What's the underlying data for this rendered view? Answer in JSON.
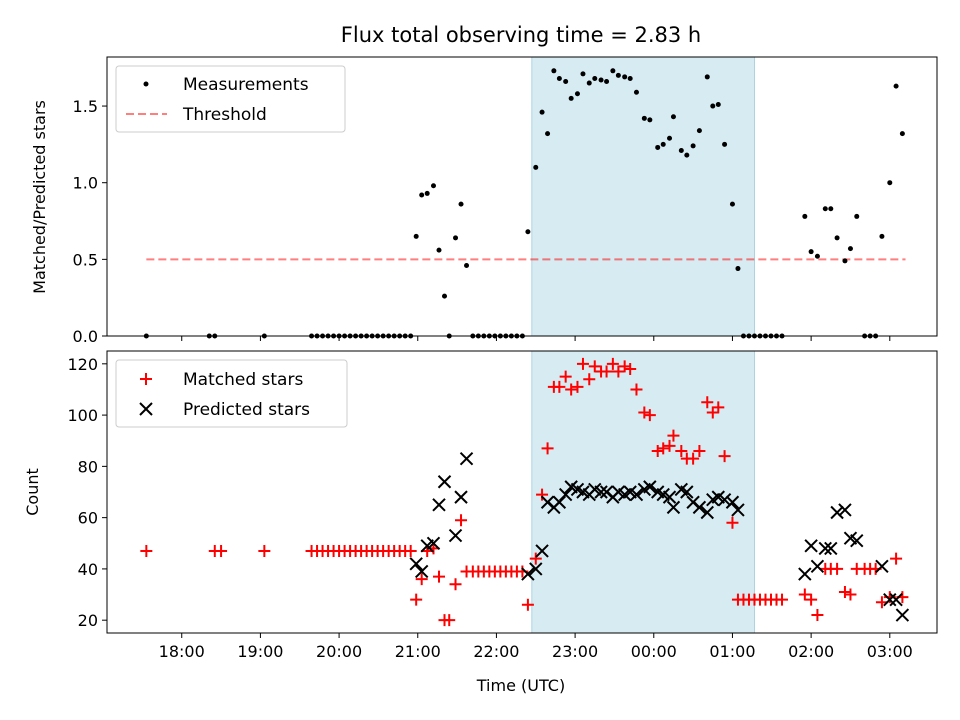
{
  "chart_data": {
    "type": "scatter",
    "title": "Flux total observing time = 2.83 h",
    "xlabel": "Time (UTC)",
    "x_unit": "hours since 00:00 UTC",
    "xlim": [
      -6.95,
      3.6
    ],
    "xticks": [
      {
        "v": -6,
        "label": "18:00"
      },
      {
        "v": -5,
        "label": "19:00"
      },
      {
        "v": -4,
        "label": "20:00"
      },
      {
        "v": -3,
        "label": "21:00"
      },
      {
        "v": -2,
        "label": "22:00"
      },
      {
        "v": -1,
        "label": "23:00"
      },
      {
        "v": 0,
        "label": "00:00"
      },
      {
        "v": 1,
        "label": "01:00"
      },
      {
        "v": 2,
        "label": "02:00"
      },
      {
        "v": 3,
        "label": "03:00"
      }
    ],
    "shaded_interval": [
      -1.55,
      1.28
    ],
    "top": {
      "ylabel": "Matched/Predicted stars",
      "ylim": [
        0,
        1.82
      ],
      "yticks": [
        {
          "v": 0,
          "label": "0.0"
        },
        {
          "v": 0.5,
          "label": "0.5"
        },
        {
          "v": 1.0,
          "label": "1.0"
        },
        {
          "v": 1.5,
          "label": "1.5"
        }
      ],
      "legend": [
        {
          "name": "Measurements",
          "marker": "dot"
        },
        {
          "name": "Threshold",
          "marker": "dashed-line"
        }
      ],
      "threshold": {
        "value": 0.5,
        "x_range": [
          -6.45,
          3.2
        ]
      },
      "measurements": [
        [
          -6.45,
          0
        ],
        [
          -5.65,
          0
        ],
        [
          -5.58,
          0
        ],
        [
          -4.95,
          0
        ],
        [
          -4.35,
          0
        ],
        [
          -4.28,
          0
        ],
        [
          -4.21,
          0
        ],
        [
          -4.14,
          0
        ],
        [
          -4.07,
          0
        ],
        [
          -4.0,
          0
        ],
        [
          -3.93,
          0
        ],
        [
          -3.86,
          0
        ],
        [
          -3.79,
          0
        ],
        [
          -3.72,
          0
        ],
        [
          -3.65,
          0
        ],
        [
          -3.58,
          0
        ],
        [
          -3.51,
          0
        ],
        [
          -3.44,
          0
        ],
        [
          -3.37,
          0
        ],
        [
          -3.3,
          0
        ],
        [
          -3.23,
          0
        ],
        [
          -3.16,
          0
        ],
        [
          -3.09,
          0
        ],
        [
          -3.02,
          0.65
        ],
        [
          -2.95,
          0.92
        ],
        [
          -2.88,
          0.93
        ],
        [
          -2.8,
          0.98
        ],
        [
          -2.73,
          0.56
        ],
        [
          -2.66,
          0.26
        ],
        [
          -2.6,
          0
        ],
        [
          -2.52,
          0.64
        ],
        [
          -2.45,
          0.86
        ],
        [
          -2.38,
          0.46
        ],
        [
          -2.3,
          0
        ],
        [
          -2.23,
          0
        ],
        [
          -2.16,
          0
        ],
        [
          -2.09,
          0
        ],
        [
          -2.02,
          0
        ],
        [
          -1.95,
          0
        ],
        [
          -1.88,
          0
        ],
        [
          -1.81,
          0
        ],
        [
          -1.74,
          0
        ],
        [
          -1.67,
          0
        ],
        [
          -1.6,
          0.68
        ],
        [
          -1.5,
          1.1
        ],
        [
          -1.42,
          1.46
        ],
        [
          -1.35,
          1.32
        ],
        [
          -1.27,
          1.73
        ],
        [
          -1.2,
          1.68
        ],
        [
          -1.12,
          1.66
        ],
        [
          -1.05,
          1.55
        ],
        [
          -0.97,
          1.58
        ],
        [
          -0.9,
          1.71
        ],
        [
          -0.82,
          1.65
        ],
        [
          -0.75,
          1.68
        ],
        [
          -0.67,
          1.67
        ],
        [
          -0.6,
          1.66
        ],
        [
          -0.52,
          1.73
        ],
        [
          -0.45,
          1.7
        ],
        [
          -0.37,
          1.69
        ],
        [
          -0.3,
          1.68
        ],
        [
          -0.22,
          1.59
        ],
        [
          -0.12,
          1.42
        ],
        [
          -0.05,
          1.41
        ],
        [
          0.05,
          1.23
        ],
        [
          0.12,
          1.25
        ],
        [
          0.2,
          1.29
        ],
        [
          0.25,
          1.43
        ],
        [
          0.35,
          1.21
        ],
        [
          0.42,
          1.18
        ],
        [
          0.5,
          1.24
        ],
        [
          0.58,
          1.34
        ],
        [
          0.68,
          1.69
        ],
        [
          0.75,
          1.5
        ],
        [
          0.82,
          1.51
        ],
        [
          0.9,
          1.25
        ],
        [
          1.0,
          0.86
        ],
        [
          1.07,
          0.44
        ],
        [
          1.14,
          0
        ],
        [
          1.21,
          0
        ],
        [
          1.28,
          0
        ],
        [
          1.35,
          0
        ],
        [
          1.42,
          0
        ],
        [
          1.49,
          0
        ],
        [
          1.56,
          0
        ],
        [
          1.63,
          0
        ],
        [
          1.92,
          0.78
        ],
        [
          2.0,
          0.55
        ],
        [
          2.08,
          0.52
        ],
        [
          2.18,
          0.83
        ],
        [
          2.25,
          0.83
        ],
        [
          2.33,
          0.64
        ],
        [
          2.43,
          0.49
        ],
        [
          2.5,
          0.57
        ],
        [
          2.58,
          0.78
        ],
        [
          2.68,
          0
        ],
        [
          2.75,
          0
        ],
        [
          2.82,
          0
        ],
        [
          2.9,
          0.65
        ],
        [
          3.0,
          1.0
        ],
        [
          3.08,
          1.63
        ],
        [
          3.16,
          1.32
        ]
      ]
    },
    "bottom": {
      "ylabel": "Count",
      "ylim": [
        15,
        125
      ],
      "yticks": [
        {
          "v": 20,
          "label": "20"
        },
        {
          "v": 40,
          "label": "40"
        },
        {
          "v": 60,
          "label": "60"
        },
        {
          "v": 80,
          "label": "80"
        },
        {
          "v": 100,
          "label": "100"
        },
        {
          "v": 120,
          "label": "120"
        }
      ],
      "legend": [
        {
          "name": "Matched stars",
          "marker": "plus",
          "color": "#ff0000"
        },
        {
          "name": "Predicted stars",
          "marker": "x",
          "color": "#000000"
        }
      ],
      "matched": [
        [
          -6.45,
          47
        ],
        [
          -5.58,
          47
        ],
        [
          -5.5,
          47
        ],
        [
          -4.95,
          47
        ],
        [
          -4.35,
          47
        ],
        [
          -4.28,
          47
        ],
        [
          -4.21,
          47
        ],
        [
          -4.14,
          47
        ],
        [
          -4.07,
          47
        ],
        [
          -4.0,
          47
        ],
        [
          -3.93,
          47
        ],
        [
          -3.86,
          47
        ],
        [
          -3.79,
          47
        ],
        [
          -3.72,
          47
        ],
        [
          -3.65,
          47
        ],
        [
          -3.58,
          47
        ],
        [
          -3.51,
          47
        ],
        [
          -3.44,
          47
        ],
        [
          -3.37,
          47
        ],
        [
          -3.3,
          47
        ],
        [
          -3.23,
          47
        ],
        [
          -3.16,
          47
        ],
        [
          -3.09,
          47
        ],
        [
          -3.02,
          28
        ],
        [
          -2.95,
          36
        ],
        [
          -2.88,
          47
        ],
        [
          -2.8,
          48
        ],
        [
          -2.73,
          37
        ],
        [
          -2.66,
          20
        ],
        [
          -2.6,
          20
        ],
        [
          -2.52,
          34
        ],
        [
          -2.45,
          59
        ],
        [
          -2.38,
          39
        ],
        [
          -2.3,
          39
        ],
        [
          -2.23,
          39
        ],
        [
          -2.16,
          39
        ],
        [
          -2.09,
          39
        ],
        [
          -2.02,
          39
        ],
        [
          -1.95,
          39
        ],
        [
          -1.88,
          39
        ],
        [
          -1.81,
          39
        ],
        [
          -1.74,
          39
        ],
        [
          -1.67,
          39
        ],
        [
          -1.6,
          26
        ],
        [
          -1.5,
          44
        ],
        [
          -1.42,
          69
        ],
        [
          -1.35,
          87
        ],
        [
          -1.27,
          111
        ],
        [
          -1.2,
          111
        ],
        [
          -1.12,
          115
        ],
        [
          -1.05,
          110
        ],
        [
          -0.97,
          111
        ],
        [
          -0.9,
          120
        ],
        [
          -0.82,
          114
        ],
        [
          -0.75,
          119
        ],
        [
          -0.67,
          117
        ],
        [
          -0.6,
          117
        ],
        [
          -0.52,
          120
        ],
        [
          -0.45,
          117
        ],
        [
          -0.37,
          119
        ],
        [
          -0.3,
          118
        ],
        [
          -0.22,
          110
        ],
        [
          -0.12,
          101
        ],
        [
          -0.05,
          100
        ],
        [
          0.05,
          86
        ],
        [
          0.12,
          87
        ],
        [
          0.2,
          88
        ],
        [
          0.25,
          92
        ],
        [
          0.35,
          86
        ],
        [
          0.42,
          83
        ],
        [
          0.5,
          83
        ],
        [
          0.58,
          86
        ],
        [
          0.68,
          105
        ],
        [
          0.75,
          101
        ],
        [
          0.82,
          103
        ],
        [
          0.9,
          84
        ],
        [
          1.0,
          58
        ],
        [
          1.07,
          28
        ],
        [
          1.14,
          28
        ],
        [
          1.21,
          28
        ],
        [
          1.28,
          28
        ],
        [
          1.35,
          28
        ],
        [
          1.42,
          28
        ],
        [
          1.49,
          28
        ],
        [
          1.56,
          28
        ],
        [
          1.63,
          28
        ],
        [
          1.92,
          30
        ],
        [
          2.0,
          28
        ],
        [
          2.08,
          22
        ],
        [
          2.18,
          40
        ],
        [
          2.25,
          40
        ],
        [
          2.33,
          40
        ],
        [
          2.43,
          31
        ],
        [
          2.5,
          30
        ],
        [
          2.58,
          40
        ],
        [
          2.68,
          40
        ],
        [
          2.75,
          40
        ],
        [
          2.82,
          40
        ],
        [
          2.9,
          27
        ],
        [
          3.0,
          29
        ],
        [
          3.08,
          44
        ],
        [
          3.16,
          29
        ]
      ],
      "predicted": [
        [
          -3.02,
          42
        ],
        [
          -2.95,
          39
        ],
        [
          -2.88,
          49
        ],
        [
          -2.8,
          50
        ],
        [
          -2.73,
          65
        ],
        [
          -2.66,
          74
        ],
        [
          -2.52,
          53
        ],
        [
          -2.45,
          68
        ],
        [
          -2.38,
          83
        ],
        [
          -1.6,
          38
        ],
        [
          -1.5,
          40
        ],
        [
          -1.42,
          47
        ],
        [
          -1.35,
          66
        ],
        [
          -1.27,
          64
        ],
        [
          -1.2,
          66
        ],
        [
          -1.12,
          69
        ],
        [
          -1.05,
          72
        ],
        [
          -0.97,
          71
        ],
        [
          -0.9,
          70
        ],
        [
          -0.82,
          69
        ],
        [
          -0.75,
          71
        ],
        [
          -0.67,
          70
        ],
        [
          -0.6,
          70
        ],
        [
          -0.52,
          68
        ],
        [
          -0.45,
          70
        ],
        [
          -0.37,
          69
        ],
        [
          -0.3,
          70
        ],
        [
          -0.22,
          69
        ],
        [
          -0.12,
          71
        ],
        [
          -0.05,
          72
        ],
        [
          0.05,
          70
        ],
        [
          0.12,
          69
        ],
        [
          0.2,
          68
        ],
        [
          0.25,
          64
        ],
        [
          0.35,
          71
        ],
        [
          0.42,
          70
        ],
        [
          0.5,
          66
        ],
        [
          0.58,
          64
        ],
        [
          0.68,
          62
        ],
        [
          0.75,
          67
        ],
        [
          0.82,
          68
        ],
        [
          0.9,
          67
        ],
        [
          1.0,
          66
        ],
        [
          1.07,
          63
        ],
        [
          1.92,
          38
        ],
        [
          2.0,
          49
        ],
        [
          2.08,
          41
        ],
        [
          2.18,
          48
        ],
        [
          2.25,
          48
        ],
        [
          2.33,
          62
        ],
        [
          2.43,
          63
        ],
        [
          2.5,
          52
        ],
        [
          2.58,
          51
        ],
        [
          2.9,
          41
        ],
        [
          3.0,
          28
        ],
        [
          3.08,
          28
        ],
        [
          3.16,
          22
        ]
      ]
    }
  }
}
